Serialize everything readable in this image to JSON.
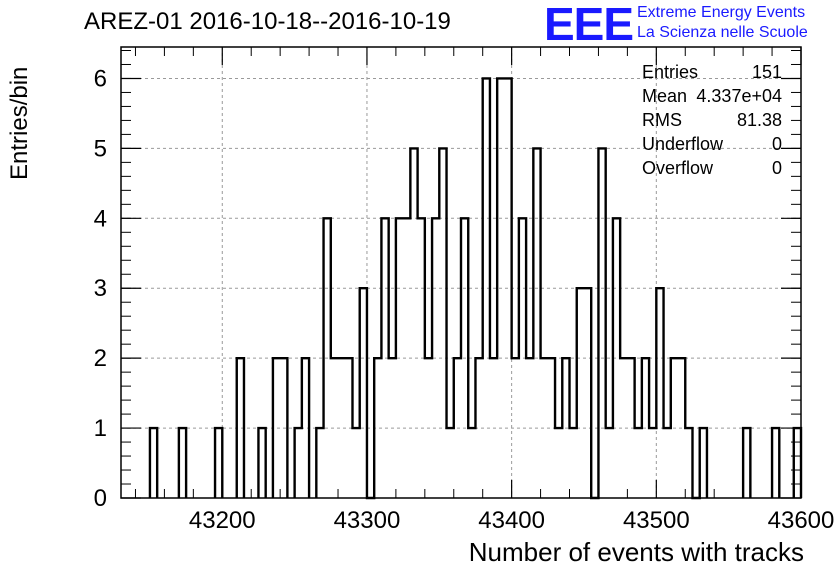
{
  "title": "AREZ-01 2016-10-18--2016-10-19",
  "logo": {
    "mark": "EEE",
    "line1": "Extreme Energy Events",
    "line2": "La Scienza nelle Scuole",
    "color": "#1a1aff"
  },
  "stats": {
    "entries_label": "Entries",
    "entries_value": "151",
    "mean_label": "Mean",
    "mean_value": "4.337e+04",
    "rms_label": "RMS",
    "rms_value": "81.38",
    "underflow_label": "Underflow",
    "underflow_value": "0",
    "overflow_label": "Overflow",
    "overflow_value": "0"
  },
  "chart_data": {
    "type": "bar",
    "title": "AREZ-01 2016-10-18--2016-10-19",
    "xlabel": "Number of events with tracks",
    "ylabel": "Entries/bin",
    "xlim": [
      43130,
      43600
    ],
    "ylim": [
      0,
      6.45
    ],
    "xticks": [
      "43200",
      "43300",
      "43400",
      "43500",
      "43600"
    ],
    "yticks": [
      "0",
      "1",
      "2",
      "3",
      "4",
      "5",
      "6"
    ],
    "grid": true,
    "bin_width": 5,
    "bins": [
      [
        43150,
        1
      ],
      [
        43170,
        1
      ],
      [
        43195,
        1
      ],
      [
        43210,
        2
      ],
      [
        43225,
        1
      ],
      [
        43235,
        2
      ],
      [
        43240,
        2
      ],
      [
        43250,
        1
      ],
      [
        43255,
        2
      ],
      [
        43265,
        1
      ],
      [
        43270,
        4
      ],
      [
        43275,
        2
      ],
      [
        43280,
        2
      ],
      [
        43285,
        2
      ],
      [
        43290,
        1
      ],
      [
        43295,
        3
      ],
      [
        43300,
        0
      ],
      [
        43305,
        2
      ],
      [
        43310,
        4
      ],
      [
        43315,
        2
      ],
      [
        43320,
        4
      ],
      [
        43325,
        4
      ],
      [
        43330,
        5
      ],
      [
        43335,
        4
      ],
      [
        43340,
        2
      ],
      [
        43345,
        4
      ],
      [
        43350,
        5
      ],
      [
        43355,
        1
      ],
      [
        43360,
        2
      ],
      [
        43365,
        4
      ],
      [
        43370,
        1
      ],
      [
        43375,
        2
      ],
      [
        43380,
        6
      ],
      [
        43385,
        2
      ],
      [
        43390,
        6
      ],
      [
        43395,
        6
      ],
      [
        43400,
        2
      ],
      [
        43405,
        4
      ],
      [
        43410,
        2
      ],
      [
        43415,
        5
      ],
      [
        43420,
        2
      ],
      [
        43425,
        2
      ],
      [
        43430,
        1
      ],
      [
        43435,
        2
      ],
      [
        43440,
        1
      ],
      [
        43445,
        3
      ],
      [
        43450,
        3
      ],
      [
        43455,
        0
      ],
      [
        43460,
        5
      ],
      [
        43465,
        1
      ],
      [
        43470,
        4
      ],
      [
        43475,
        2
      ],
      [
        43480,
        2
      ],
      [
        43485,
        1
      ],
      [
        43490,
        2
      ],
      [
        43495,
        1
      ],
      [
        43500,
        3
      ],
      [
        43505,
        1
      ],
      [
        43510,
        2
      ],
      [
        43515,
        2
      ],
      [
        43520,
        1
      ],
      [
        43525,
        0
      ],
      [
        43530,
        1
      ],
      [
        43560,
        1
      ],
      [
        43580,
        1
      ],
      [
        43595,
        1
      ]
    ]
  }
}
